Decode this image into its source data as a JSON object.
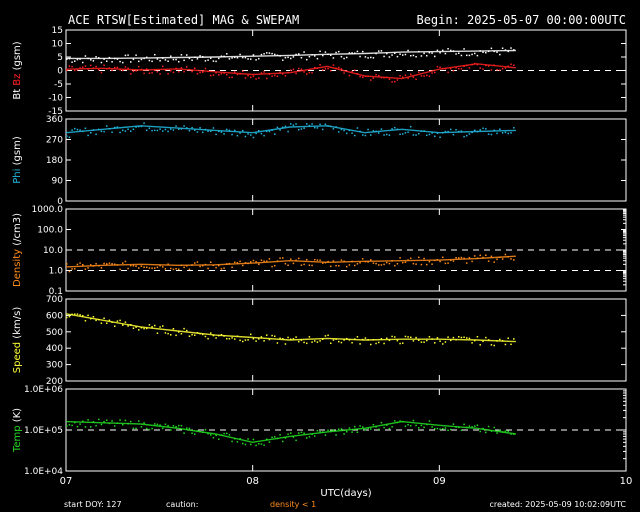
{
  "header": {
    "title": "ACE RTSW[Estimated] MAG & SWEPAM",
    "begin": "Begin: 2025-05-07 00:00:00UTC"
  },
  "footer": {
    "start_doy": "start DOY: 127",
    "caution": "caution:",
    "density_note": "density < 1",
    "created": "created: 2025-05-09 10:02:09UTC"
  },
  "colors": {
    "background": "#000000",
    "axes": "#ffffff",
    "bt": "#ffffff",
    "bz": "#ff2020",
    "phi": "#22b8e0",
    "density": "#ff8c1a",
    "speed": "#ffff33",
    "temp": "#22dd22"
  },
  "chart_data": {
    "type": "line",
    "x_axis": {
      "label": "UTC(days)",
      "ticks": [
        "07",
        "08",
        "09",
        "10"
      ],
      "range_days": [
        7,
        10
      ],
      "data_end_day": 9.41
    },
    "panels": [
      {
        "id": "bt-bz",
        "ylabel_parts": [
          {
            "text": "Bt",
            "color_key": "bt"
          },
          {
            "text": "Bz",
            "color_key": "bz"
          },
          {
            "text": "(gsm)",
            "color_key": "axes"
          }
        ],
        "ylim": [
          -15,
          15
        ],
        "ticks": [
          "15",
          "10",
          "5",
          "0",
          "-5",
          "-10",
          "-15"
        ],
        "tick_values": [
          15,
          10,
          5,
          0,
          -5,
          -10,
          -15
        ],
        "dashed": [
          0
        ],
        "series": [
          {
            "color_key": "bt",
            "x": [
              7.0,
              7.2,
              7.4,
              7.6,
              7.8,
              8.0,
              8.2,
              8.4,
              8.6,
              8.8,
              9.0,
              9.2,
              9.41
            ],
            "y": [
              4.5,
              4.5,
              4.6,
              4.8,
              5.0,
              5.3,
              5.6,
              6.0,
              6.3,
              6.8,
              7.0,
              7.2,
              7.4
            ]
          },
          {
            "color_key": "bz",
            "x": [
              7.0,
              7.2,
              7.4,
              7.6,
              7.8,
              8.0,
              8.2,
              8.4,
              8.6,
              8.8,
              9.0,
              9.2,
              9.41
            ],
            "y": [
              0.5,
              0.8,
              0.2,
              0.6,
              -0.5,
              -1.5,
              -0.8,
              1.5,
              -2.0,
              -3.0,
              0.5,
              2.5,
              1.0
            ]
          }
        ]
      },
      {
        "id": "phi",
        "ylabel_parts": [
          {
            "text": "Phi",
            "color_key": "phi"
          },
          {
            "text": "(gsm)",
            "color_key": "axes"
          }
        ],
        "ylim": [
          0,
          360
        ],
        "ticks": [
          "360",
          "270",
          "180",
          "90",
          "0"
        ],
        "tick_values": [
          360,
          270,
          180,
          90,
          0
        ],
        "dashed": [],
        "series": [
          {
            "color_key": "phi",
            "x": [
              7.0,
              7.2,
              7.4,
              7.6,
              7.8,
              8.0,
              8.2,
              8.4,
              8.6,
              8.8,
              9.0,
              9.2,
              9.41
            ],
            "y": [
              300,
              315,
              330,
              320,
              310,
              300,
              325,
              330,
              300,
              315,
              300,
              305,
              310
            ]
          }
        ]
      },
      {
        "id": "density",
        "ylabel_parts": [
          {
            "text": "Density",
            "color_key": "density"
          },
          {
            "text": "(/cm3)",
            "color_key": "axes"
          }
        ],
        "scale": "log",
        "ylim": [
          0.1,
          1000
        ],
        "ticks": [
          "1000.0",
          "100.0",
          "10.0",
          "1.0",
          "0.1"
        ],
        "tick_values": [
          1000,
          100,
          10,
          1,
          0.1
        ],
        "dashed": [
          10,
          1
        ],
        "series": [
          {
            "color_key": "density",
            "x": [
              7.0,
              7.2,
              7.4,
              7.6,
              7.8,
              8.0,
              8.2,
              8.4,
              8.6,
              8.8,
              9.0,
              9.2,
              9.41
            ],
            "y": [
              1.5,
              1.8,
              2.0,
              1.8,
              1.9,
              2.3,
              3.0,
              2.5,
              2.8,
              3.0,
              3.2,
              3.8,
              5.0
            ]
          }
        ]
      },
      {
        "id": "speed",
        "ylabel_parts": [
          {
            "text": "Speed",
            "color_key": "speed"
          },
          {
            "text": "(km/s)",
            "color_key": "axes"
          }
        ],
        "ylim": [
          200,
          700
        ],
        "ticks": [
          "700",
          "600",
          "500",
          "400",
          "300",
          "200"
        ],
        "tick_values": [
          700,
          600,
          500,
          400,
          300,
          200
        ],
        "dashed": [],
        "series": [
          {
            "color_key": "speed",
            "x": [
              7.0,
              7.2,
              7.4,
              7.6,
              7.8,
              8.0,
              8.2,
              8.4,
              8.6,
              8.8,
              9.0,
              9.2,
              9.41
            ],
            "y": [
              610,
              570,
              530,
              505,
              480,
              465,
              450,
              460,
              450,
              455,
              455,
              450,
              440
            ]
          }
        ]
      },
      {
        "id": "temp",
        "ylabel_parts": [
          {
            "text": "Temp",
            "color_key": "temp"
          },
          {
            "text": "(K)",
            "color_key": "axes"
          }
        ],
        "scale": "log",
        "ylim": [
          10000,
          1000000
        ],
        "ticks": [
          "1.0E+06",
          "1.0E+05",
          "1.0E+04"
        ],
        "tick_values": [
          1000000,
          100000,
          10000
        ],
        "dashed": [
          100000
        ],
        "series": [
          {
            "color_key": "temp",
            "x": [
              7.0,
              7.2,
              7.4,
              7.6,
              7.8,
              8.0,
              8.2,
              8.4,
              8.6,
              8.8,
              9.0,
              9.2,
              9.41
            ],
            "y": [
              160000,
              150000,
              140000,
              110000,
              80000,
              50000,
              70000,
              90000,
              110000,
              160000,
              130000,
              110000,
              80000
            ]
          }
        ]
      }
    ]
  }
}
